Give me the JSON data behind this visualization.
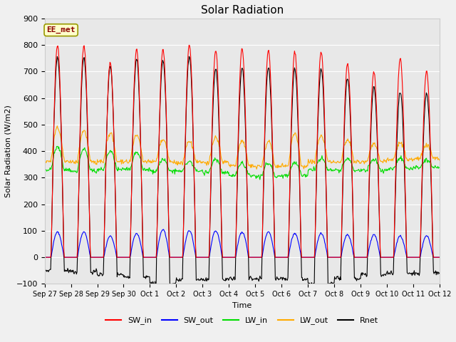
{
  "title": "Solar Radiation",
  "xlabel": "Time",
  "ylabel": "Solar Radiation (W/m2)",
  "ylim": [
    -100,
    900
  ],
  "yticks": [
    -100,
    0,
    100,
    200,
    300,
    400,
    500,
    600,
    700,
    800,
    900
  ],
  "fig_bg_color": "#f0f0f0",
  "plot_bg_color": "#e8e8e8",
  "legend_label": "EE_met",
  "legend_box_color": "#ffffcc",
  "legend_box_edge": "#999900",
  "n_days": 15,
  "colors": {
    "SW_in": "#ff0000",
    "SW_out": "#0000ff",
    "LW_in": "#00dd00",
    "LW_out": "#ffaa00",
    "Rnet": "#000000"
  },
  "linewidths": {
    "SW_in": 0.8,
    "SW_out": 0.8,
    "LW_in": 0.8,
    "LW_out": 0.8,
    "Rnet": 0.8
  },
  "date_labels": [
    "Sep 27",
    "Sep 28",
    "Sep 29",
    "Sep 30",
    "Oct 1",
    "Oct 2",
    "Oct 3",
    "Oct 4",
    "Oct 5",
    "Oct 6",
    "Oct 7",
    "Oct 8",
    "Oct 9",
    "Oct 10",
    "Oct 11",
    "Oct 12"
  ],
  "SW_in_peaks": [
    800,
    800,
    735,
    785,
    785,
    800,
    780,
    785,
    780,
    775,
    775,
    730,
    700,
    750,
    700
  ],
  "SW_out_peaks": [
    95,
    95,
    80,
    90,
    105,
    100,
    100,
    95,
    95,
    90,
    90,
    85,
    85,
    80,
    80
  ],
  "LW_in_base": [
    330,
    325,
    330,
    330,
    325,
    325,
    320,
    310,
    305,
    308,
    330,
    328,
    328,
    333,
    338
  ],
  "LW_in_peaks": [
    415,
    408,
    400,
    395,
    368,
    362,
    370,
    355,
    355,
    358,
    372,
    372,
    370,
    372,
    368
  ],
  "LW_out_base": [
    362,
    358,
    362,
    360,
    360,
    358,
    358,
    345,
    342,
    342,
    360,
    360,
    362,
    367,
    372
  ],
  "LW_out_peaks": [
    488,
    478,
    468,
    458,
    443,
    438,
    452,
    438,
    438,
    467,
    458,
    443,
    428,
    432,
    422
  ],
  "Rnet_peaks": [
    755,
    755,
    720,
    750,
    745,
    755,
    710,
    715,
    715,
    710,
    710,
    675,
    640,
    625,
    620
  ],
  "Rnet_troughs": [
    -50,
    -55,
    -65,
    -75,
    -100,
    -85,
    -85,
    -80,
    -80,
    -80,
    -100,
    -80,
    -65,
    -60,
    -60
  ]
}
